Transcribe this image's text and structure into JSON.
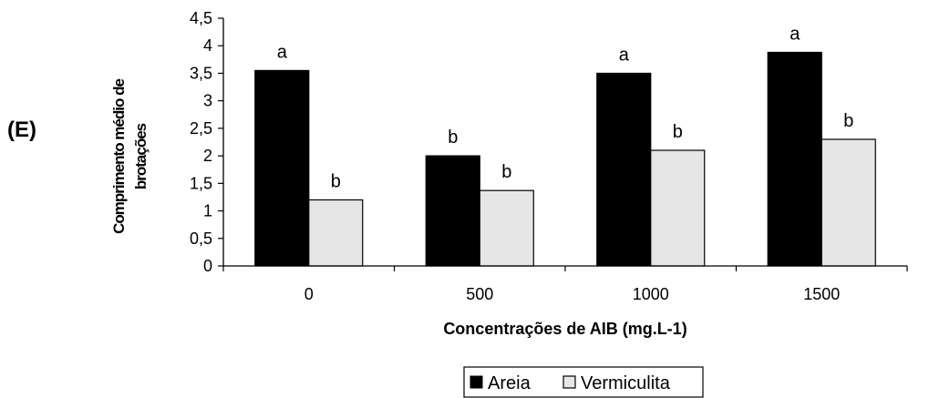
{
  "panel_label": "(E)",
  "chart_data": {
    "type": "bar",
    "categories": [
      "0",
      "500",
      "1000",
      "1500"
    ],
    "series": [
      {
        "name": "Areia",
        "color": "#000000",
        "values": [
          3.55,
          2.0,
          3.5,
          3.88
        ],
        "letters": [
          "a",
          "b",
          "a",
          "a"
        ]
      },
      {
        "name": "Vermiculita",
        "color": "#e6e6e6",
        "values": [
          1.2,
          1.37,
          2.1,
          2.3
        ],
        "letters": [
          "b",
          "b",
          "b",
          "b"
        ]
      }
    ],
    "ylim": [
      0,
      4.5
    ],
    "yticks": [
      "0",
      "0,5",
      "1",
      "1,5",
      "2",
      "2,5",
      "3",
      "3,5",
      "4",
      "4,5"
    ],
    "ytick_values": [
      0,
      0.5,
      1,
      1.5,
      2,
      2.5,
      3,
      3.5,
      4,
      4.5
    ],
    "xlabel": "Concentrações de AIB (mg.L-1)",
    "ylabel_lines": [
      "Comprimento médio de",
      "brotações"
    ],
    "legend_position": "bottom",
    "grid": false
  }
}
